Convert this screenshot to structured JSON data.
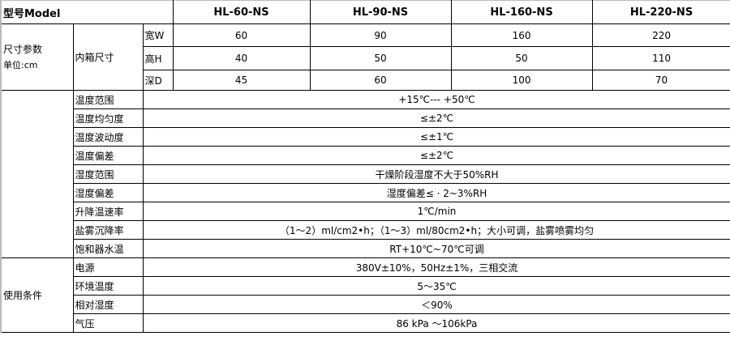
{
  "header": {
    "label": "型号Model",
    "models": [
      "HL-60-NS",
      "HL-90-NS",
      "HL-160-NS",
      "HL-220-NS"
    ]
  },
  "dimensions": {
    "group": "尺寸参数",
    "unit": "单位:cm",
    "sub": "内箱尺寸",
    "rows": [
      {
        "label": "宽W",
        "values": [
          "60",
          "90",
          "160",
          "220"
        ]
      },
      {
        "label": "高H",
        "values": [
          "40",
          "50",
          "50",
          "110"
        ]
      },
      {
        "label": "深D",
        "values": [
          "45",
          "60",
          "100",
          "70"
        ]
      }
    ]
  },
  "specs": [
    {
      "label": "温度范围",
      "value": "+15℃---  +50℃"
    },
    {
      "label": "温度均匀度",
      "value": "≤±2℃"
    },
    {
      "label": "温度波动度",
      "value": "≤±1℃"
    },
    {
      "label": "温度偏差",
      "value": "≤±2℃"
    },
    {
      "label": "湿度范围",
      "value": "干燥阶段湿度不大于50%RH"
    },
    {
      "label": "湿度偏差",
      "value": "湿度偏差≤ · 2~3%RH"
    },
    {
      "label": "升降温速率",
      "value": "1℃/min"
    },
    {
      "label": "盐雾沉降率",
      "value": "（1～2）ml/cm2•h；（1～3）ml/80cm2•h；大小可调，盐雾喷雾均匀"
    },
    {
      "label": "饱和器水温",
      "value": "RT+10℃~70℃可调"
    }
  ],
  "conditions": {
    "group": "使用条件",
    "rows": [
      {
        "label": "电源",
        "value": "380V±10%，50Hz±1%，三相交流"
      },
      {
        "label": "环境温度",
        "value": "5～35℃"
      },
      {
        "label": "相对湿度",
        "value": "＜90%"
      },
      {
        "label": "气压",
        "value": "86 kPa ～106kPa"
      }
    ]
  }
}
